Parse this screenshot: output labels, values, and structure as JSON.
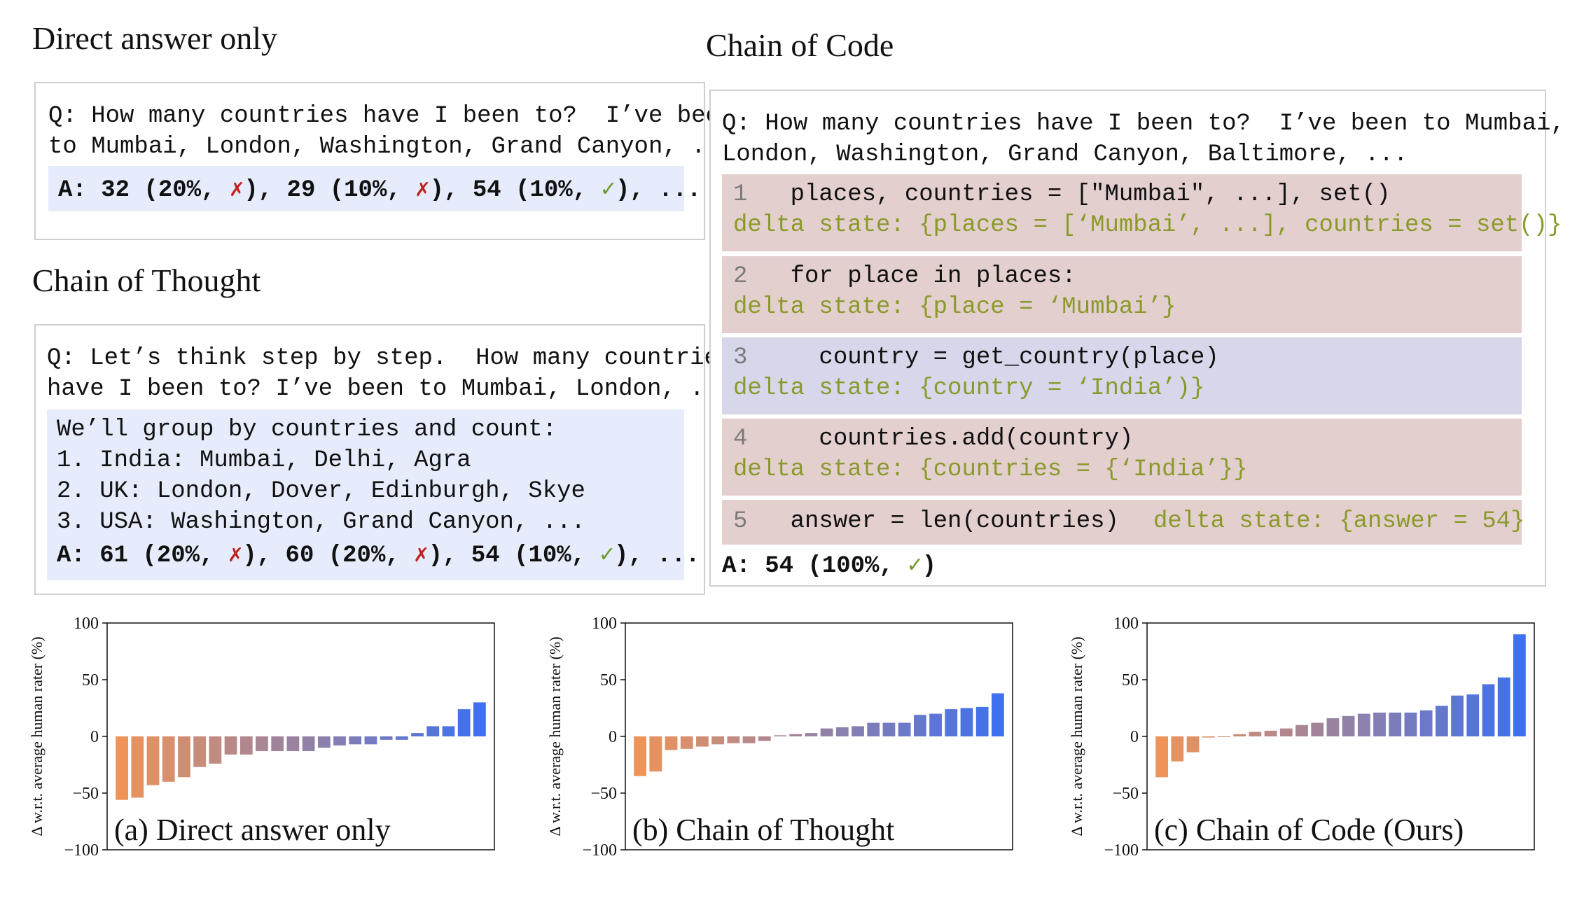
{
  "direct": {
    "heading": "Direct answer only",
    "q_line1": "Q: How many countries have I been to?  I’ve been",
    "q_line2": "to Mumbai, London, Washington, Grand Canyon, ...",
    "answer": {
      "prefix": "A: 32 (20%, ",
      "mark1": "✗",
      "mid1": "), 29 (10%, ",
      "mark2": "✗",
      "mid2": "), 54 (10%, ",
      "mark3": "✓",
      "suffix": "), ..."
    }
  },
  "cot": {
    "heading": "Chain of Thought",
    "q_line1": "Q: Let’s think step by step.  How many countries",
    "q_line2": "have I been to? I’ve been to Mumbai, London, ...",
    "body": [
      "We’ll group by countries and count:",
      "1. India: Mumbai, Delhi, Agra",
      "2. UK: London, Dover, Edinburgh, Skye",
      "3. USA: Washington, Grand Canyon, ..."
    ],
    "answer": {
      "prefix": "A: 61 (20%, ",
      "mark1": "✗",
      "mid1": "), 60 (20%, ",
      "mark2": "✗",
      "mid2": "), 54 (10%, ",
      "mark3": "✓",
      "suffix": "), ..."
    }
  },
  "coc": {
    "heading": "Chain of Code",
    "q_line1": "Q: How many countries have I been to?  I’ve been to Mumbai,",
    "q_line2": "London, Washington, Grand Canyon, Baltimore, ...",
    "steps": [
      {
        "num": "1",
        "code": "places, countries = [\"Mumbai\", ...], set()",
        "delta": "delta state: {places = [‘Mumbai’, ...], countries = set()}"
      },
      {
        "num": "2",
        "code": "for place in places:",
        "delta": "delta state: {place = ‘Mumbai’}"
      },
      {
        "num": "3",
        "code": "  country = get_country(place)",
        "delta": "delta state: {country = ‘India’)}"
      },
      {
        "num": "4",
        "code": "  countries.add(country)",
        "delta": "delta state: {countries = {‘India’}}"
      },
      {
        "num": "5",
        "code": "answer = len(countries)",
        "delta": "delta state: {answer = 54}"
      }
    ],
    "answer": {
      "prefix": "A: 54 (100%, ",
      "mark": "✓",
      "suffix": ")"
    }
  },
  "colors": {
    "orange": "#ee9459",
    "blue": "#3e70ef",
    "xmark": "#c0221f",
    "check": "#6e9a2c",
    "delta": "#8a9a2a"
  },
  "chart_data": [
    {
      "type": "bar",
      "title": "(a) Direct answer only",
      "ylabel": "Δ w.r.t. average human rater (%)",
      "ylim": [
        -100,
        100
      ],
      "yticks": [
        100,
        50,
        0,
        -50,
        -100
      ],
      "values": [
        -56,
        -54,
        -43,
        -40,
        -36,
        -27,
        -24,
        -16,
        -16,
        -13,
        -13,
        -13,
        -13,
        -10,
        -8,
        -7,
        -7,
        -3,
        -3,
        3,
        9,
        9,
        24,
        30
      ]
    },
    {
      "type": "bar",
      "title": "(b) Chain of Thought",
      "ylabel": "Δ w.r.t. average human rater (%)",
      "ylim": [
        -100,
        100
      ],
      "yticks": [
        100,
        50,
        0,
        -50,
        -100
      ],
      "values": [
        -35,
        -31,
        -12,
        -11,
        -9,
        -7,
        -6,
        -6,
        -4,
        1,
        2,
        3,
        7,
        8,
        9,
        12,
        12,
        12,
        19,
        20,
        24,
        25,
        26,
        38
      ]
    },
    {
      "type": "bar",
      "title": "(c) Chain of Code (Ours)",
      "ylabel": "Δ w.r.t. average human rater (%)",
      "ylim": [
        -100,
        100
      ],
      "yticks": [
        100,
        50,
        0,
        -50,
        -100
      ],
      "values": [
        -36,
        -22,
        -14,
        -1,
        0,
        2,
        4,
        5,
        7,
        10,
        12,
        16,
        18,
        20,
        21,
        21,
        21,
        23,
        27,
        36,
        37,
        46,
        52,
        90
      ]
    }
  ]
}
